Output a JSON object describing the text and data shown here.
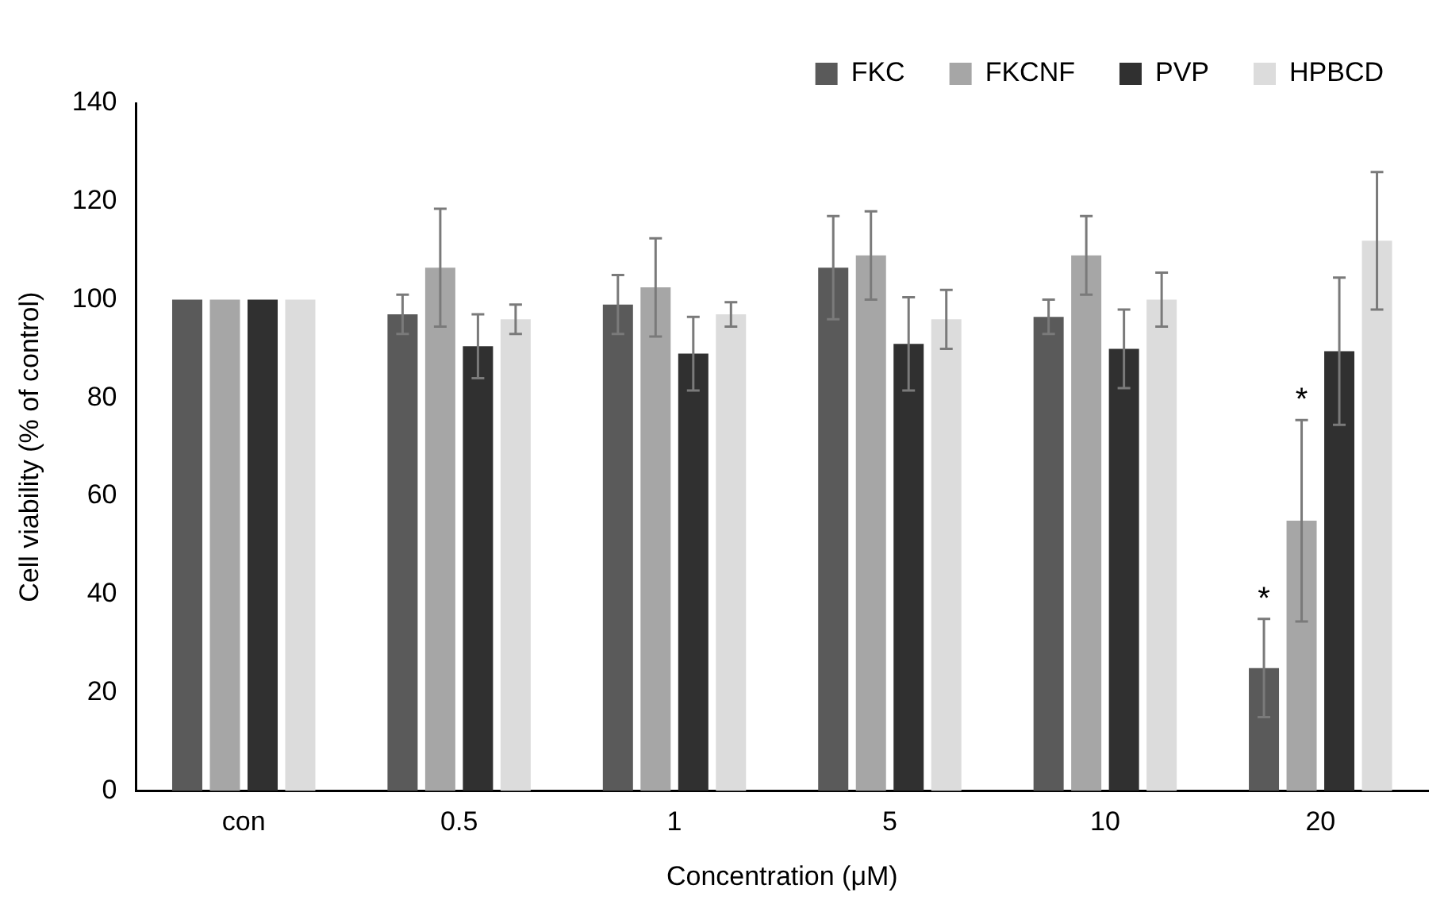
{
  "chart_data": {
    "type": "bar",
    "xlabel": "Concentration (μM)",
    "ylabel": "Cell viability (% of control)",
    "categories": [
      "con",
      "0.5",
      "1",
      "5",
      "10",
      "20"
    ],
    "series": [
      {
        "name": "FKC",
        "color": "#5a5a5a",
        "values": [
          100,
          97,
          99,
          106.5,
          96.5,
          25
        ],
        "errors": [
          null,
          4,
          6,
          10.5,
          3.5,
          10
        ]
      },
      {
        "name": "FKCNF",
        "color": "#a6a6a6",
        "values": [
          100,
          106.5,
          102.5,
          109,
          109,
          55
        ],
        "errors": [
          null,
          12,
          10,
          9,
          8,
          20.5
        ]
      },
      {
        "name": "PVP",
        "color": "#303030",
        "values": [
          100,
          90.5,
          89,
          91,
          90,
          89.5
        ],
        "errors": [
          null,
          6.5,
          7.5,
          9.5,
          8,
          15
        ]
      },
      {
        "name": "HPBCD",
        "color": "#dcdcdc",
        "values": [
          100,
          96,
          97,
          96,
          100,
          112
        ],
        "errors": [
          null,
          3,
          2.5,
          6,
          5.5,
          14
        ]
      }
    ],
    "ylim": [
      0,
      140
    ],
    "yticks": [
      0,
      20,
      40,
      60,
      80,
      100,
      120,
      140
    ],
    "grid": false,
    "legend": "top right",
    "annotations": [
      {
        "text": "*",
        "x": "20",
        "y": 35
      },
      {
        "text": "*",
        "x": "20",
        "y": 75.5
      }
    ]
  }
}
